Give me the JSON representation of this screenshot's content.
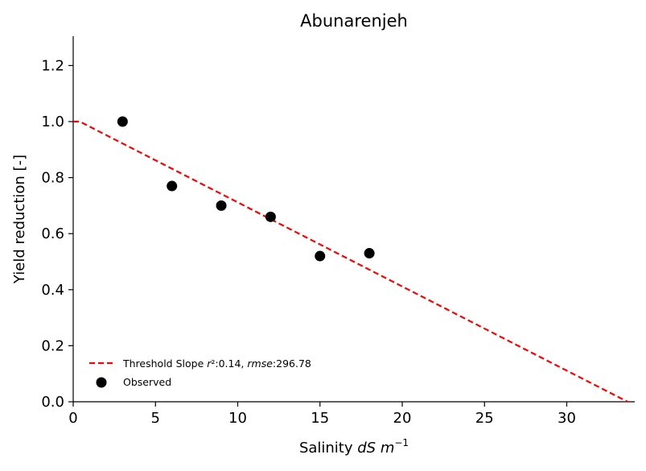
{
  "chart_data": {
    "type": "scatter",
    "title": "Abunarenjeh",
    "xlabel": "Salinity dS m⁻¹",
    "ylabel": "Yield reduction [-]",
    "xlim": [
      0,
      34.2
    ],
    "ylim": [
      0,
      1.3
    ],
    "xticks": [
      0,
      5,
      10,
      15,
      20,
      25,
      30
    ],
    "yticks": [
      0.0,
      0.2,
      0.4,
      0.6,
      0.8,
      1.0,
      1.2
    ],
    "grid": false,
    "legend_position": "lower-left",
    "series": [
      {
        "name": "Threshold Slope r²:0.14, rmse:296.78",
        "kind": "line",
        "style": "dashed",
        "color": "#ff0000",
        "x": [
          0,
          0.4,
          33.7
        ],
        "y": [
          1.0,
          1.0,
          0.0
        ]
      },
      {
        "name": "Observed",
        "kind": "scatter",
        "color": "#000000",
        "x": [
          3,
          6,
          9,
          12,
          15,
          18
        ],
        "y": [
          1.0,
          0.77,
          0.7,
          0.66,
          0.52,
          0.53
        ]
      }
    ]
  }
}
